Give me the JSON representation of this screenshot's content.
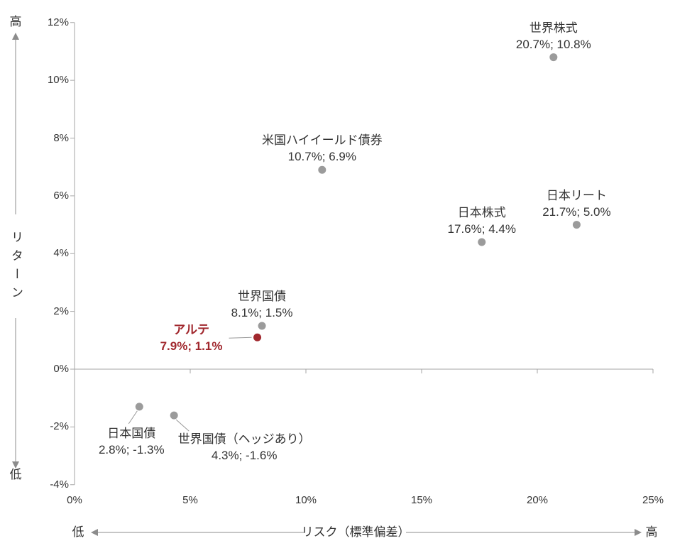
{
  "chart_data": {
    "type": "scatter",
    "title": "",
    "xlabel": "リスク（標準偏差）",
    "ylabel": "リターン",
    "grid": false,
    "legend": "none",
    "x_axis": {
      "min": 0,
      "max": 25,
      "tick_values": [
        0,
        5,
        10,
        15,
        20,
        25
      ],
      "tick_labels": [
        "0%",
        "5%",
        "10%",
        "15%",
        "20%",
        "25%"
      ],
      "end_labels": {
        "low": "低",
        "high": "高"
      }
    },
    "y_axis": {
      "min": -4,
      "max": 12,
      "tick_values": [
        12,
        10,
        8,
        6,
        4,
        2,
        0,
        -2,
        -4
      ],
      "tick_labels": [
        "12%",
        "10%",
        "8%",
        "6%",
        "4%",
        "2%",
        "0%",
        "-2%",
        "-4%"
      ],
      "end_labels": {
        "high": "高",
        "low": "低"
      }
    },
    "points": [
      {
        "name": "世界株式",
        "x": 20.7,
        "y": 10.8,
        "value_label": "20.7%; 10.8%",
        "color": "#9b9b9b",
        "highlight": false,
        "label_position": "above"
      },
      {
        "name": "米国ハイイールド債券",
        "x": 10.7,
        "y": 6.9,
        "value_label": "10.7%; 6.9%",
        "color": "#9b9b9b",
        "highlight": false,
        "label_position": "above"
      },
      {
        "name": "日本リート",
        "x": 21.7,
        "y": 5.0,
        "value_label": "21.7%; 5.0%",
        "color": "#9b9b9b",
        "highlight": false,
        "label_position": "above"
      },
      {
        "name": "日本株式",
        "x": 17.6,
        "y": 4.4,
        "value_label": "17.6%; 4.4%",
        "color": "#9b9b9b",
        "highlight": false,
        "label_position": "above"
      },
      {
        "name": "世界国債",
        "x": 8.1,
        "y": 1.5,
        "value_label": "8.1%; 1.5%",
        "color": "#9b9b9b",
        "highlight": false,
        "label_position": "above"
      },
      {
        "name": "アルテ",
        "x": 7.9,
        "y": 1.1,
        "value_label": "7.9%; 1.1%",
        "color": "#a1282e",
        "highlight": true,
        "label_position": "left"
      },
      {
        "name": "日本国債",
        "x": 2.8,
        "y": -1.3,
        "value_label": "2.8%; -1.3%",
        "color": "#9b9b9b",
        "highlight": false,
        "label_position": "below-left"
      },
      {
        "name": "世界国債（ヘッジあり）",
        "x": 4.3,
        "y": -1.6,
        "value_label": "4.3%; -1.6%",
        "color": "#9b9b9b",
        "highlight": false,
        "label_position": "below-right"
      }
    ],
    "colors": {
      "point": "#9b9b9b",
      "highlight": "#a1282e",
      "axis": "#a6a6a6",
      "leader": "#999999",
      "arrow": "#8c8c8c",
      "text": "#333333"
    }
  }
}
